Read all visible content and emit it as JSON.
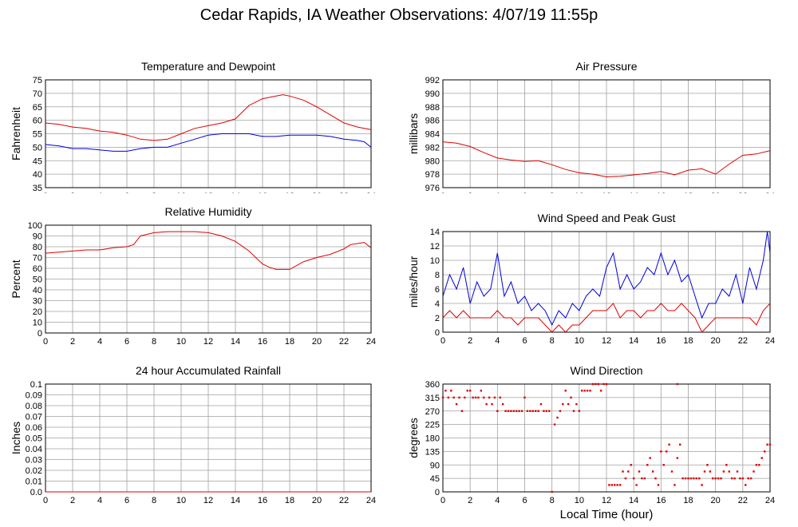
{
  "page": {
    "title": "Cedar Rapids, IA Weather Observations: 4/07/19 11:55p",
    "x_axis_label": "Local Time (hour)"
  },
  "colors": {
    "red": "#e00000",
    "blue": "#0000e0",
    "grid": "#a0a0a0"
  },
  "chart_data": [
    {
      "id": "temp",
      "type": "line",
      "title": "Temperature and Dewpoint",
      "xlabel": "",
      "ylabel": "Fahrenheit",
      "xlim": [
        0,
        24
      ],
      "ylim": [
        35,
        75
      ],
      "yticks": [
        35,
        40,
        45,
        50,
        55,
        60,
        65,
        70,
        75
      ],
      "xticks": [
        0,
        2,
        4,
        6,
        8,
        10,
        12,
        14,
        16,
        18,
        20,
        22,
        24
      ],
      "grid": true,
      "series": [
        {
          "color": "red",
          "x": [
            0,
            1,
            2,
            3,
            4,
            5,
            6,
            7,
            8,
            9,
            10,
            11,
            12,
            13,
            14,
            14.5,
            15,
            16,
            17,
            17.5,
            18,
            19,
            20,
            21,
            22,
            23,
            24
          ],
          "y": [
            59,
            58.5,
            57.5,
            57,
            56,
            55.5,
            54.5,
            53,
            52.5,
            53,
            55,
            57,
            58,
            59,
            60.5,
            63,
            65.5,
            68,
            69,
            69.5,
            69,
            67.5,
            65,
            62,
            59,
            57.5,
            56.5
          ]
        },
        {
          "color": "blue",
          "x": [
            0,
            1,
            2,
            3,
            4,
            5,
            6,
            7,
            8,
            9,
            10,
            11,
            12,
            13,
            14,
            15,
            16,
            17,
            18,
            19,
            20,
            21,
            22,
            23,
            23.5,
            24
          ],
          "y": [
            51,
            50.5,
            49.5,
            49.5,
            49,
            48.5,
            48.5,
            49.5,
            50,
            50,
            51.5,
            53,
            54.5,
            55,
            55,
            55,
            54,
            54,
            54.5,
            54.5,
            54.5,
            54,
            53,
            52.5,
            52,
            50
          ]
        }
      ]
    },
    {
      "id": "pressure",
      "type": "line",
      "title": "Air Pressure",
      "xlabel": "",
      "ylabel": "millibars",
      "xlim": [
        0,
        24
      ],
      "ylim": [
        976,
        992
      ],
      "yticks": [
        976,
        978,
        980,
        982,
        984,
        986,
        988,
        990,
        992
      ],
      "xticks": [
        0,
        2,
        4,
        6,
        8,
        10,
        12,
        14,
        16,
        18,
        20,
        22,
        24
      ],
      "grid": true,
      "series": [
        {
          "color": "red",
          "x": [
            0,
            1,
            2,
            3,
            4,
            5,
            6,
            7,
            8,
            9,
            10,
            11,
            12,
            13,
            14,
            15,
            16,
            17,
            18,
            19,
            20,
            21,
            22,
            23,
            24
          ],
          "y": [
            982.8,
            982.6,
            982.1,
            981.2,
            980.4,
            980.1,
            979.9,
            980.0,
            979.4,
            978.7,
            978.2,
            978.0,
            977.6,
            977.7,
            977.9,
            978.1,
            978.4,
            977.9,
            978.6,
            978.8,
            978.0,
            979.5,
            980.8,
            981.0,
            981.5
          ]
        }
      ]
    },
    {
      "id": "rh",
      "type": "line",
      "title": "Relative Humidity",
      "xlabel": "",
      "ylabel": "Percent",
      "xlim": [
        0,
        24
      ],
      "ylim": [
        0,
        100
      ],
      "yticks": [
        0,
        10,
        20,
        30,
        40,
        50,
        60,
        70,
        80,
        90,
        100
      ],
      "xticks": [
        0,
        2,
        4,
        6,
        8,
        10,
        12,
        14,
        16,
        18,
        20,
        22,
        24
      ],
      "grid": true,
      "series": [
        {
          "color": "red",
          "x": [
            0,
            1,
            2,
            3,
            4,
            5,
            6,
            6.5,
            7,
            8,
            9,
            10,
            11,
            12,
            13,
            14,
            15,
            16,
            16.5,
            17,
            18,
            19,
            20,
            21,
            22,
            22.5,
            23,
            23.5,
            24
          ],
          "y": [
            74,
            75,
            76,
            77,
            77,
            79,
            80,
            82,
            90,
            93,
            94,
            94,
            94,
            93,
            90,
            85,
            76,
            64,
            61,
            59,
            59,
            66,
            70,
            73,
            78,
            82,
            83,
            84,
            79
          ]
        }
      ]
    },
    {
      "id": "wind",
      "type": "line",
      "title": "Wind Speed and Peak Gust",
      "xlabel": "",
      "ylabel": "miles/hour",
      "xlim": [
        0,
        24
      ],
      "ylim": [
        0,
        14
      ],
      "yticks": [
        0,
        2,
        4,
        6,
        8,
        10,
        12,
        14
      ],
      "xticks": [
        0,
        2,
        4,
        6,
        8,
        10,
        12,
        14,
        16,
        18,
        20,
        22,
        24
      ],
      "grid": true,
      "series": [
        {
          "color": "blue",
          "x": [
            0,
            0.5,
            1,
            1.5,
            2,
            2.5,
            3,
            3.5,
            4,
            4.5,
            5,
            5.5,
            6,
            6.5,
            7,
            7.5,
            8,
            8.5,
            9,
            9.5,
            10,
            10.5,
            11,
            11.5,
            12,
            12.5,
            13,
            13.5,
            14,
            14.5,
            15,
            15.5,
            16,
            16.5,
            17,
            17.5,
            18,
            18.5,
            19,
            19.5,
            20,
            20.5,
            21,
            21.5,
            22,
            22.5,
            23,
            23.5,
            23.8,
            24
          ],
          "y": [
            5,
            8,
            6,
            9,
            4,
            7,
            5,
            6,
            11,
            5,
            7,
            4,
            5,
            3,
            4,
            3,
            1,
            3,
            2,
            4,
            3,
            5,
            6,
            5,
            9,
            11,
            6,
            8,
            6,
            7,
            9,
            8,
            11,
            8,
            10,
            7,
            8,
            5,
            2,
            4,
            4,
            6,
            5,
            8,
            4,
            9,
            6,
            10,
            14,
            11
          ]
        },
        {
          "color": "red",
          "x": [
            0,
            0.5,
            1,
            1.5,
            2,
            2.5,
            3,
            3.5,
            4,
            4.5,
            5,
            5.5,
            6,
            6.5,
            7,
            7.5,
            8,
            8.5,
            9,
            9.5,
            10,
            10.5,
            11,
            11.5,
            12,
            12.5,
            13,
            13.5,
            14,
            14.5,
            15,
            15.5,
            16,
            16.5,
            17,
            17.5,
            18,
            18.5,
            19,
            19.5,
            20,
            20.5,
            21,
            21.5,
            22,
            22.5,
            23,
            23.5,
            24
          ],
          "y": [
            2,
            3,
            2,
            3,
            2,
            2,
            2,
            2,
            3,
            2,
            2,
            1,
            2,
            2,
            2,
            1,
            0,
            1,
            0,
            1,
            1,
            2,
            3,
            3,
            3,
            4,
            2,
            3,
            3,
            2,
            3,
            3,
            4,
            3,
            3,
            4,
            3,
            2,
            0,
            1,
            2,
            2,
            2,
            2,
            2,
            2,
            1,
            3,
            4
          ]
        }
      ]
    },
    {
      "id": "rain",
      "type": "line",
      "title": "24 hour Accumulated Rainfall",
      "xlabel": "",
      "ylabel": "Inches",
      "xlim": [
        0,
        24
      ],
      "ylim": [
        0,
        0.1
      ],
      "yticks": [
        0.0,
        0.01,
        0.02,
        0.03,
        0.04,
        0.05,
        0.06,
        0.07,
        0.08,
        0.09,
        0.1
      ],
      "ytick_labels": [
        "0.0",
        "0.01",
        "0.02",
        "0.03",
        "0.04",
        "0.05",
        "0.06",
        "0.07",
        "0.08",
        "0.09",
        "0.1"
      ],
      "xticks": [
        0,
        2,
        4,
        6,
        8,
        10,
        12,
        14,
        16,
        18,
        20,
        22,
        24
      ],
      "grid": true,
      "series": [
        {
          "color": "red",
          "x": [
            0,
            24
          ],
          "y": [
            0,
            0
          ]
        }
      ]
    },
    {
      "id": "dir",
      "type": "scatter",
      "title": "Wind Direction",
      "xlabel": "Local Time (hour)",
      "ylabel": "degrees",
      "xlim": [
        0,
        24
      ],
      "ylim": [
        0,
        360
      ],
      "yticks": [
        0,
        45,
        90,
        135,
        180,
        225,
        270,
        315,
        360
      ],
      "xticks": [
        0,
        2,
        4,
        6,
        8,
        10,
        12,
        14,
        16,
        18,
        20,
        22,
        24
      ],
      "grid": true,
      "series": [
        {
          "color": "red",
          "x": [
            0,
            0.2,
            0.4,
            0.6,
            0.8,
            1,
            1.2,
            1.4,
            1.6,
            1.8,
            2,
            2.2,
            2.4,
            2.6,
            2.8,
            3,
            3.2,
            3.4,
            3.6,
            3.8,
            4,
            4.2,
            4.4,
            4.6,
            4.8,
            5,
            5.2,
            5.4,
            5.6,
            5.8,
            6,
            6.2,
            6.4,
            6.6,
            6.8,
            7,
            7.2,
            7.4,
            7.6,
            7.8,
            8,
            8.2,
            8.4,
            8.6,
            8.8,
            9,
            9.2,
            9.4,
            9.6,
            9.8,
            10,
            10.2,
            10.4,
            10.6,
            10.8,
            11,
            11.2,
            11.4,
            11.6,
            11.8,
            12,
            12.2,
            12.4,
            12.6,
            12.8,
            13,
            13.2,
            13.4,
            13.6,
            13.8,
            14,
            14.2,
            14.4,
            14.6,
            14.8,
            15,
            15.2,
            15.4,
            15.6,
            15.8,
            16,
            16.2,
            16.4,
            16.6,
            16.8,
            17,
            17.2,
            17.4,
            17.6,
            17.8,
            18,
            18.2,
            18.4,
            18.6,
            18.8,
            19,
            19.2,
            19.4,
            19.6,
            19.8,
            20,
            20.2,
            20.4,
            20.6,
            20.8,
            21,
            21.2,
            21.4,
            21.6,
            21.8,
            22,
            22.2,
            22.4,
            22.6,
            22.8,
            23,
            23.2,
            23.4,
            23.6,
            23.8,
            24
          ],
          "y": [
            315,
            338,
            315,
            338,
            315,
            293,
            315,
            270,
            315,
            338,
            338,
            315,
            315,
            315,
            338,
            315,
            293,
            315,
            293,
            315,
            270,
            315,
            293,
            270,
            270,
            270,
            270,
            270,
            270,
            270,
            315,
            270,
            270,
            270,
            270,
            270,
            293,
            270,
            270,
            270,
            0,
            225,
            248,
            270,
            293,
            338,
            293,
            315,
            270,
            293,
            270,
            338,
            338,
            338,
            338,
            360,
            360,
            360,
            338,
            360,
            360,
            23,
            23,
            23,
            23,
            23,
            68,
            45,
            68,
            90,
            45,
            23,
            68,
            45,
            45,
            90,
            113,
            68,
            45,
            23,
            135,
            90,
            135,
            158,
            68,
            23,
            113,
            158,
            45,
            45,
            45,
            45,
            45,
            45,
            45,
            23,
            68,
            90,
            68,
            45,
            45,
            45,
            45,
            68,
            90,
            68,
            45,
            45,
            68,
            45,
            45,
            23,
            45,
            45,
            68,
            90,
            90,
            113,
            135,
            158,
            158
          ]
        },
        {
          "color": "red",
          "x": [
            17.2
          ],
          "y": [
            360
          ]
        }
      ]
    }
  ]
}
